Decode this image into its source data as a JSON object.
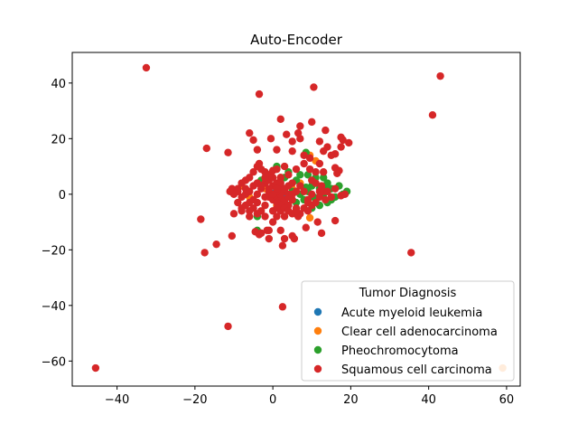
{
  "chart_data": {
    "type": "scatter",
    "title": "Auto-Encoder",
    "xlabel": "",
    "ylabel": "",
    "xlim": [
      -51.5,
      63.5
    ],
    "ylim": [
      -69,
      51
    ],
    "xticks": [
      -40,
      -20,
      0,
      20,
      40,
      60
    ],
    "yticks": [
      -60,
      -40,
      -20,
      0,
      20,
      40
    ],
    "grid": false,
    "legend": {
      "title": "Tumor Diagnosis",
      "placement": "lower-right"
    },
    "series": [
      {
        "name": "Acute myeloid leukemia",
        "color": "#1f77b4",
        "points": [
          [
            1,
            0
          ],
          [
            2,
            1
          ],
          [
            3,
            -1
          ],
          [
            0.5,
            0.5
          ]
        ]
      },
      {
        "name": "Clear cell adenocarcinoma",
        "color": "#ff7f0e",
        "points": [
          [
            11,
            12
          ],
          [
            9.5,
            14
          ],
          [
            9.5,
            -8.5
          ],
          [
            -8,
            3
          ],
          [
            -2,
            2
          ],
          [
            5,
            2
          ],
          [
            3,
            -3
          ],
          [
            59,
            -62.5
          ],
          [
            2,
            6
          ],
          [
            -6,
            -1
          ],
          [
            7,
            4
          ],
          [
            1,
            -4
          ]
        ]
      },
      {
        "name": "Pheochromocytoma",
        "color": "#2ca02c",
        "points": [
          [
            8.5,
            15
          ],
          [
            4,
            8
          ],
          [
            6,
            5
          ],
          [
            10,
            3
          ],
          [
            12,
            2
          ],
          [
            13,
            0
          ],
          [
            14,
            4
          ],
          [
            15,
            2
          ],
          [
            16,
            -1
          ],
          [
            18,
            0
          ],
          [
            17,
            3
          ],
          [
            8,
            -2
          ],
          [
            9,
            1
          ],
          [
            11,
            -2
          ],
          [
            12,
            -4
          ],
          [
            10,
            -5
          ],
          [
            6,
            -3
          ],
          [
            4,
            -4
          ],
          [
            2,
            3
          ],
          [
            3,
            6
          ],
          [
            5,
            1
          ],
          [
            7,
            0
          ],
          [
            -4,
            -8
          ],
          [
            -4,
            -13
          ],
          [
            -3,
            5
          ],
          [
            1,
            10
          ],
          [
            7,
            7
          ],
          [
            13,
            6
          ],
          [
            14,
            -3
          ],
          [
            10.5,
            -1
          ],
          [
            9,
            7
          ],
          [
            11,
            6
          ],
          [
            14,
            2
          ],
          [
            15,
            -2
          ],
          [
            19,
            1
          ],
          [
            8.5,
            2.5
          ]
        ]
      },
      {
        "name": "Squamous cell carcinoma",
        "color": "#d62728",
        "points": [
          [
            -32.5,
            45.5
          ],
          [
            43,
            42.5
          ],
          [
            41,
            28.5
          ],
          [
            10.5,
            38.5
          ],
          [
            -3.5,
            36
          ],
          [
            -0.5,
            20
          ],
          [
            2,
            27
          ],
          [
            7,
            24.5
          ],
          [
            6.5,
            22
          ],
          [
            3.5,
            21.5
          ],
          [
            5,
            19
          ],
          [
            7,
            20
          ],
          [
            10,
            26
          ],
          [
            -6,
            22
          ],
          [
            -5,
            19.5
          ],
          [
            -17,
            16.5
          ],
          [
            -11.5,
            15
          ],
          [
            -4,
            16
          ],
          [
            1,
            16
          ],
          [
            5,
            15.5
          ],
          [
            8,
            14
          ],
          [
            9.5,
            13
          ],
          [
            12,
            19
          ],
          [
            13.5,
            23
          ],
          [
            14,
            17
          ],
          [
            16,
            14.5
          ],
          [
            17.5,
            20.5
          ],
          [
            18,
            19.5
          ],
          [
            17.5,
            17
          ],
          [
            19.5,
            18.5
          ],
          [
            15,
            14
          ],
          [
            13,
            15.5
          ],
          [
            16,
            9.5
          ],
          [
            17,
            8.5
          ],
          [
            16.5,
            7.5
          ],
          [
            13,
            8
          ],
          [
            12,
            11
          ],
          [
            -3.5,
            11
          ],
          [
            -3,
            9
          ],
          [
            -2,
            8
          ],
          [
            -1,
            7
          ],
          [
            0,
            8.5
          ],
          [
            1,
            9
          ],
          [
            2,
            6
          ],
          [
            3,
            10
          ],
          [
            4,
            7
          ],
          [
            6,
            9
          ],
          [
            -4,
            10
          ],
          [
            -5,
            8
          ],
          [
            -6,
            6
          ],
          [
            -7,
            5
          ],
          [
            -8,
            4
          ],
          [
            -9,
            2
          ],
          [
            -10.5,
            2
          ],
          [
            -10,
            0
          ],
          [
            -9,
            -3
          ],
          [
            -8,
            -5
          ],
          [
            -7,
            0
          ],
          [
            -6,
            -3
          ],
          [
            -5,
            -2
          ],
          [
            -4,
            0
          ],
          [
            -3,
            2
          ],
          [
            -2,
            4
          ],
          [
            -1,
            1
          ],
          [
            0,
            3
          ],
          [
            1,
            4
          ],
          [
            2,
            2
          ],
          [
            3,
            1
          ],
          [
            4,
            3
          ],
          [
            -1,
            -1
          ],
          [
            0,
            -2
          ],
          [
            1,
            -1
          ],
          [
            2,
            -2
          ],
          [
            3,
            -3
          ],
          [
            4,
            -4
          ],
          [
            5,
            -2
          ],
          [
            6,
            -5
          ],
          [
            -2,
            -4
          ],
          [
            -3,
            -6
          ],
          [
            -4,
            -7
          ],
          [
            -5,
            -5
          ],
          [
            -6,
            -8
          ],
          [
            -7,
            -4
          ],
          [
            -8,
            -6
          ],
          [
            -10,
            -7
          ],
          [
            -3,
            -14
          ],
          [
            -1,
            -13
          ],
          [
            0,
            -10
          ],
          [
            1,
            -8
          ],
          [
            2,
            -6
          ],
          [
            5,
            -7
          ],
          [
            7,
            -7
          ],
          [
            8,
            -5
          ],
          [
            9,
            -6
          ],
          [
            3,
            -16
          ],
          [
            2.5,
            -18.5
          ],
          [
            -1,
            -16
          ],
          [
            -18.5,
            -9
          ],
          [
            -14.5,
            -18
          ],
          [
            -17.5,
            -21
          ],
          [
            -10.5,
            -15
          ],
          [
            -4.5,
            -13.5
          ],
          [
            -3.5,
            -14.5
          ],
          [
            -1.5,
            -13
          ],
          [
            2,
            -13
          ],
          [
            5,
            -15
          ],
          [
            5.5,
            -16
          ],
          [
            8.5,
            -12
          ],
          [
            12.5,
            -14
          ],
          [
            16,
            -9.5
          ],
          [
            11.5,
            -10
          ],
          [
            2.5,
            -40.5
          ],
          [
            -11.5,
            -47.5
          ],
          [
            -45.5,
            -62.5
          ],
          [
            35.5,
            -21
          ],
          [
            12,
            1
          ],
          [
            13.5,
            -2
          ],
          [
            15,
            -1
          ],
          [
            16,
            2
          ],
          [
            17.5,
            -0.5
          ],
          [
            18.5,
            0
          ],
          [
            12.5,
            3
          ],
          [
            11,
            4
          ],
          [
            10,
            0
          ],
          [
            9,
            -3
          ],
          [
            8,
            1
          ],
          [
            7,
            3
          ],
          [
            6,
            1
          ],
          [
            5,
            4
          ],
          [
            4,
            0
          ],
          [
            3,
            -2
          ],
          [
            2,
            0
          ],
          [
            1,
            1
          ],
          [
            0,
            0
          ],
          [
            -1,
            2
          ],
          [
            -2,
            -1
          ],
          [
            6.5,
            -8
          ],
          [
            10,
            5
          ],
          [
            8,
            11
          ],
          [
            9.5,
            9
          ],
          [
            11,
            8
          ],
          [
            1,
            -3
          ],
          [
            3,
            2
          ],
          [
            4,
            -1
          ],
          [
            5,
            0
          ],
          [
            -1,
            5
          ],
          [
            0,
            6
          ],
          [
            -2,
            6
          ],
          [
            -3,
            3
          ],
          [
            -4,
            4
          ],
          [
            -6,
            1
          ],
          [
            -5,
            3
          ],
          [
            -7,
            2
          ],
          [
            -8,
            -1
          ],
          [
            -9,
            1
          ],
          [
            -6,
            -6
          ],
          [
            -4,
            -3
          ],
          [
            2,
            4
          ],
          [
            1,
            2
          ],
          [
            2,
            -4
          ],
          [
            3,
            -5
          ],
          [
            4,
            -6
          ],
          [
            -11,
            1
          ],
          [
            -2,
            -8
          ],
          [
            0,
            -6
          ],
          [
            1,
            -5
          ],
          [
            3,
            -8
          ],
          [
            6,
            -6
          ],
          [
            9,
            -2
          ],
          [
            10,
            -4
          ],
          [
            12,
            -1
          ],
          [
            13,
            1
          ],
          [
            14,
            1
          ],
          [
            11,
            -3
          ]
        ]
      }
    ]
  }
}
